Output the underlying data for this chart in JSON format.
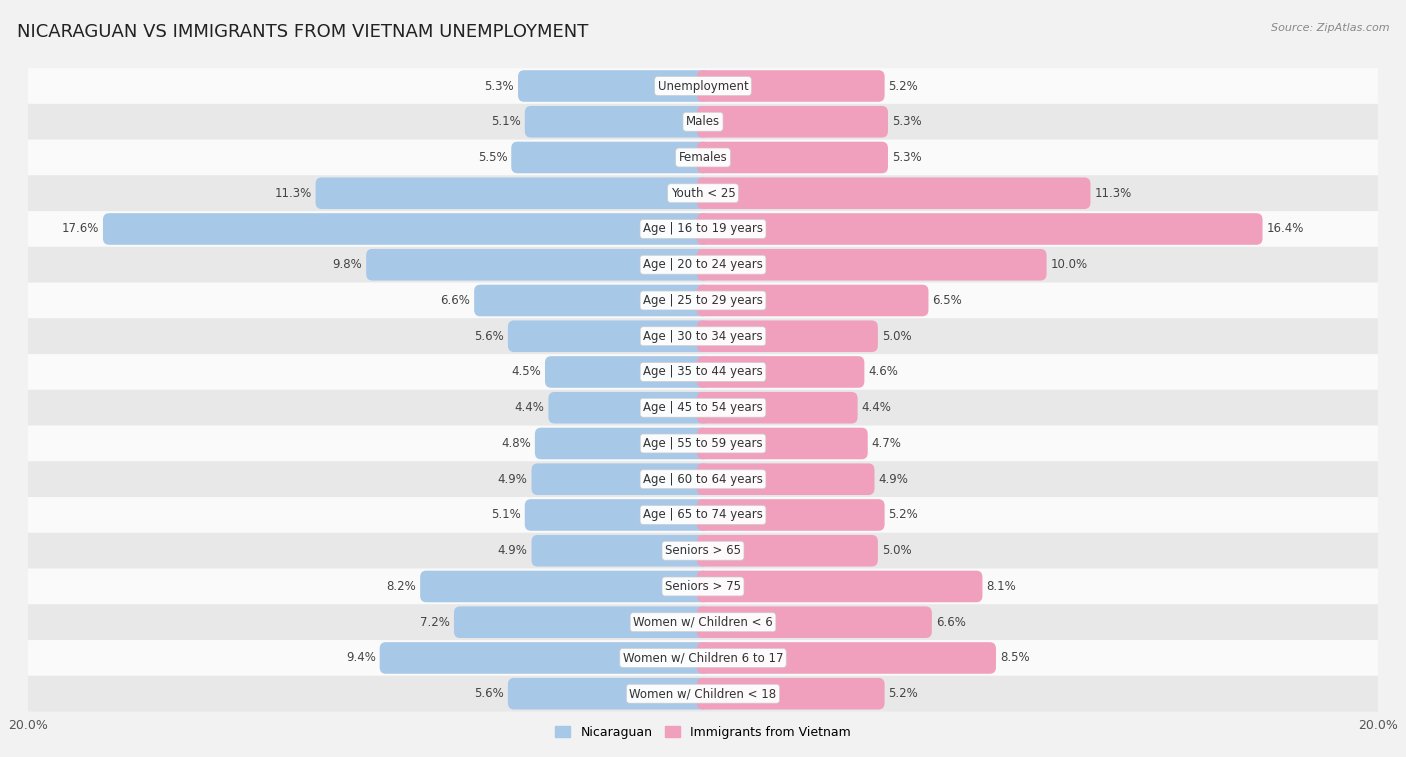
{
  "title": "NICARAGUAN VS IMMIGRANTS FROM VIETNAM UNEMPLOYMENT",
  "source": "Source: ZipAtlas.com",
  "categories": [
    "Unemployment",
    "Males",
    "Females",
    "Youth < 25",
    "Age | 16 to 19 years",
    "Age | 20 to 24 years",
    "Age | 25 to 29 years",
    "Age | 30 to 34 years",
    "Age | 35 to 44 years",
    "Age | 45 to 54 years",
    "Age | 55 to 59 years",
    "Age | 60 to 64 years",
    "Age | 65 to 74 years",
    "Seniors > 65",
    "Seniors > 75",
    "Women w/ Children < 6",
    "Women w/ Children 6 to 17",
    "Women w/ Children < 18"
  ],
  "nicaraguan": [
    5.3,
    5.1,
    5.5,
    11.3,
    17.6,
    9.8,
    6.6,
    5.6,
    4.5,
    4.4,
    4.8,
    4.9,
    5.1,
    4.9,
    8.2,
    7.2,
    9.4,
    5.6
  ],
  "vietnam": [
    5.2,
    5.3,
    5.3,
    11.3,
    16.4,
    10.0,
    6.5,
    5.0,
    4.6,
    4.4,
    4.7,
    4.9,
    5.2,
    5.0,
    8.1,
    6.6,
    8.5,
    5.2
  ],
  "nicaraguan_color": "#a8c8e8",
  "vietnam_color": "#f0a0bc",
  "background_color": "#f2f2f2",
  "row_bg_light": "#fafafa",
  "row_bg_dark": "#e8e8e8",
  "axis_max": 20.0,
  "bar_height": 0.52,
  "title_fontsize": 13,
  "label_fontsize": 8.5,
  "value_fontsize": 8.5,
  "legend_labels": [
    "Nicaraguan",
    "Immigrants from Vietnam"
  ]
}
